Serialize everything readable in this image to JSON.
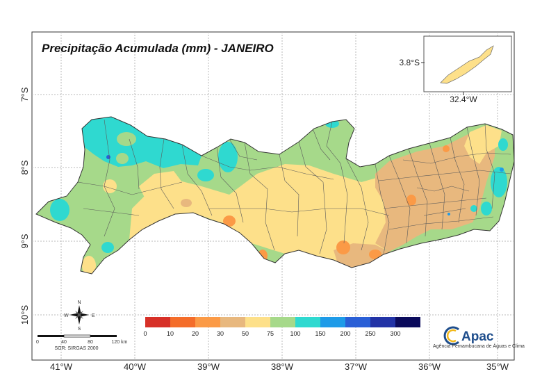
{
  "title": "Precipitação Acumulada (mm) - JANEIRO",
  "axes": {
    "longitude_labels": [
      "41°W",
      "40°W",
      "39°W",
      "38°W",
      "37°W",
      "36°W",
      "35°W"
    ],
    "latitude_labels": [
      "7°S",
      "8°S",
      "9°S",
      "10°S"
    ]
  },
  "inset": {
    "lat_label": "3.8°S",
    "lon_label": "32.4°W"
  },
  "legend": {
    "unit": "mm",
    "breaks": [
      "0",
      "10",
      "20",
      "30",
      "50",
      "75",
      "100",
      "150",
      "200",
      "250",
      "300"
    ],
    "colors": [
      "#d73027",
      "#f46d2a",
      "#fb9a46",
      "#e8b87e",
      "#fde08a",
      "#a6d98a",
      "#2fd9d0",
      "#1e9be8",
      "#2a5fd6",
      "#2233a6",
      "#0b0b5c"
    ]
  },
  "scale_bar": {
    "ticks": [
      "0",
      "40",
      "80",
      "120 km"
    ],
    "crs": "SGR: SIRGAS 2000"
  },
  "compass": {
    "n": "N",
    "s": "S",
    "e": "E",
    "w": "W"
  },
  "logo": {
    "name": "Apac",
    "subtitle": "Agência Pernambucana de Águas e Clima"
  }
}
